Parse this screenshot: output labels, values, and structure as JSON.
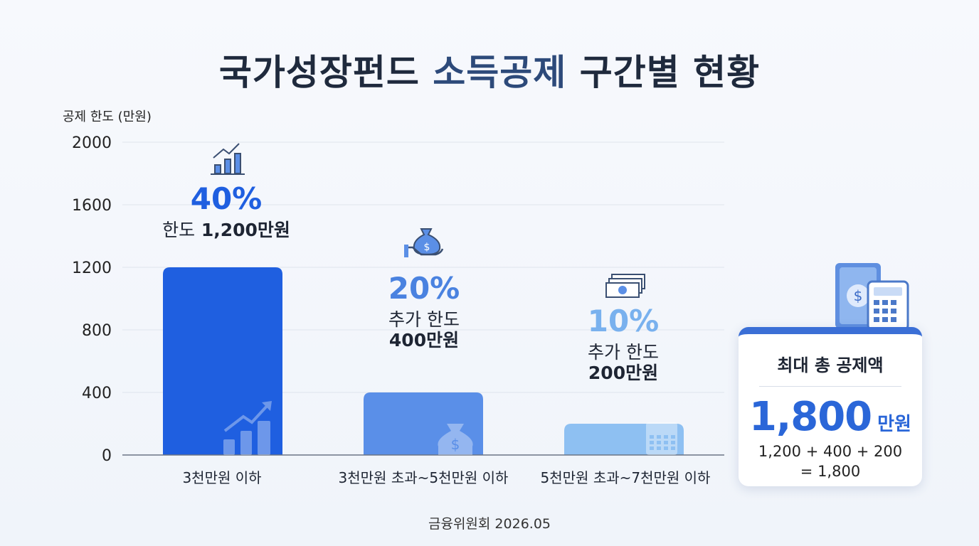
{
  "title": {
    "main": "국가성장펀드",
    "accent": "소득공제",
    "rest": "구간별 현황"
  },
  "chart_data": {
    "type": "bar",
    "ylabel": "공제 한도 (만원)",
    "ylim": [
      0,
      2000
    ],
    "yticks": [
      0,
      400,
      800,
      1200,
      1600,
      2000
    ],
    "grid": true,
    "categories": [
      "3천만원 이하",
      "3천만원 초과~5천만원 이하",
      "5천만원 초과~7천만원 이하"
    ],
    "values": [
      1200,
      400,
      200
    ],
    "bar_colors": [
      "#1f5fe0",
      "#5a8fe8",
      "#8ec0f2"
    ],
    "annotations": [
      {
        "rate": "40%",
        "line1": "한도",
        "line2": "1,200만원",
        "rate_color": "#1f5fe0",
        "icon": "growth-chart-icon"
      },
      {
        "rate": "20%",
        "line1": "추가 한도",
        "line2": "400만원",
        "rate_color": "#4a82e0",
        "icon": "money-bag-hand-icon"
      },
      {
        "rate": "10%",
        "line1": "추가 한도",
        "line2": "200만원",
        "rate_color": "#79b1ee",
        "icon": "cash-stack-icon"
      }
    ]
  },
  "total": {
    "title": "최대 총 공제액",
    "value": "1,800",
    "unit": "만원",
    "formula_line1": "1,200 + 400 + 200",
    "formula_line2": "= 1,800",
    "icon": "money-calculator-icon"
  },
  "footer": "금융위원회 2026.05"
}
